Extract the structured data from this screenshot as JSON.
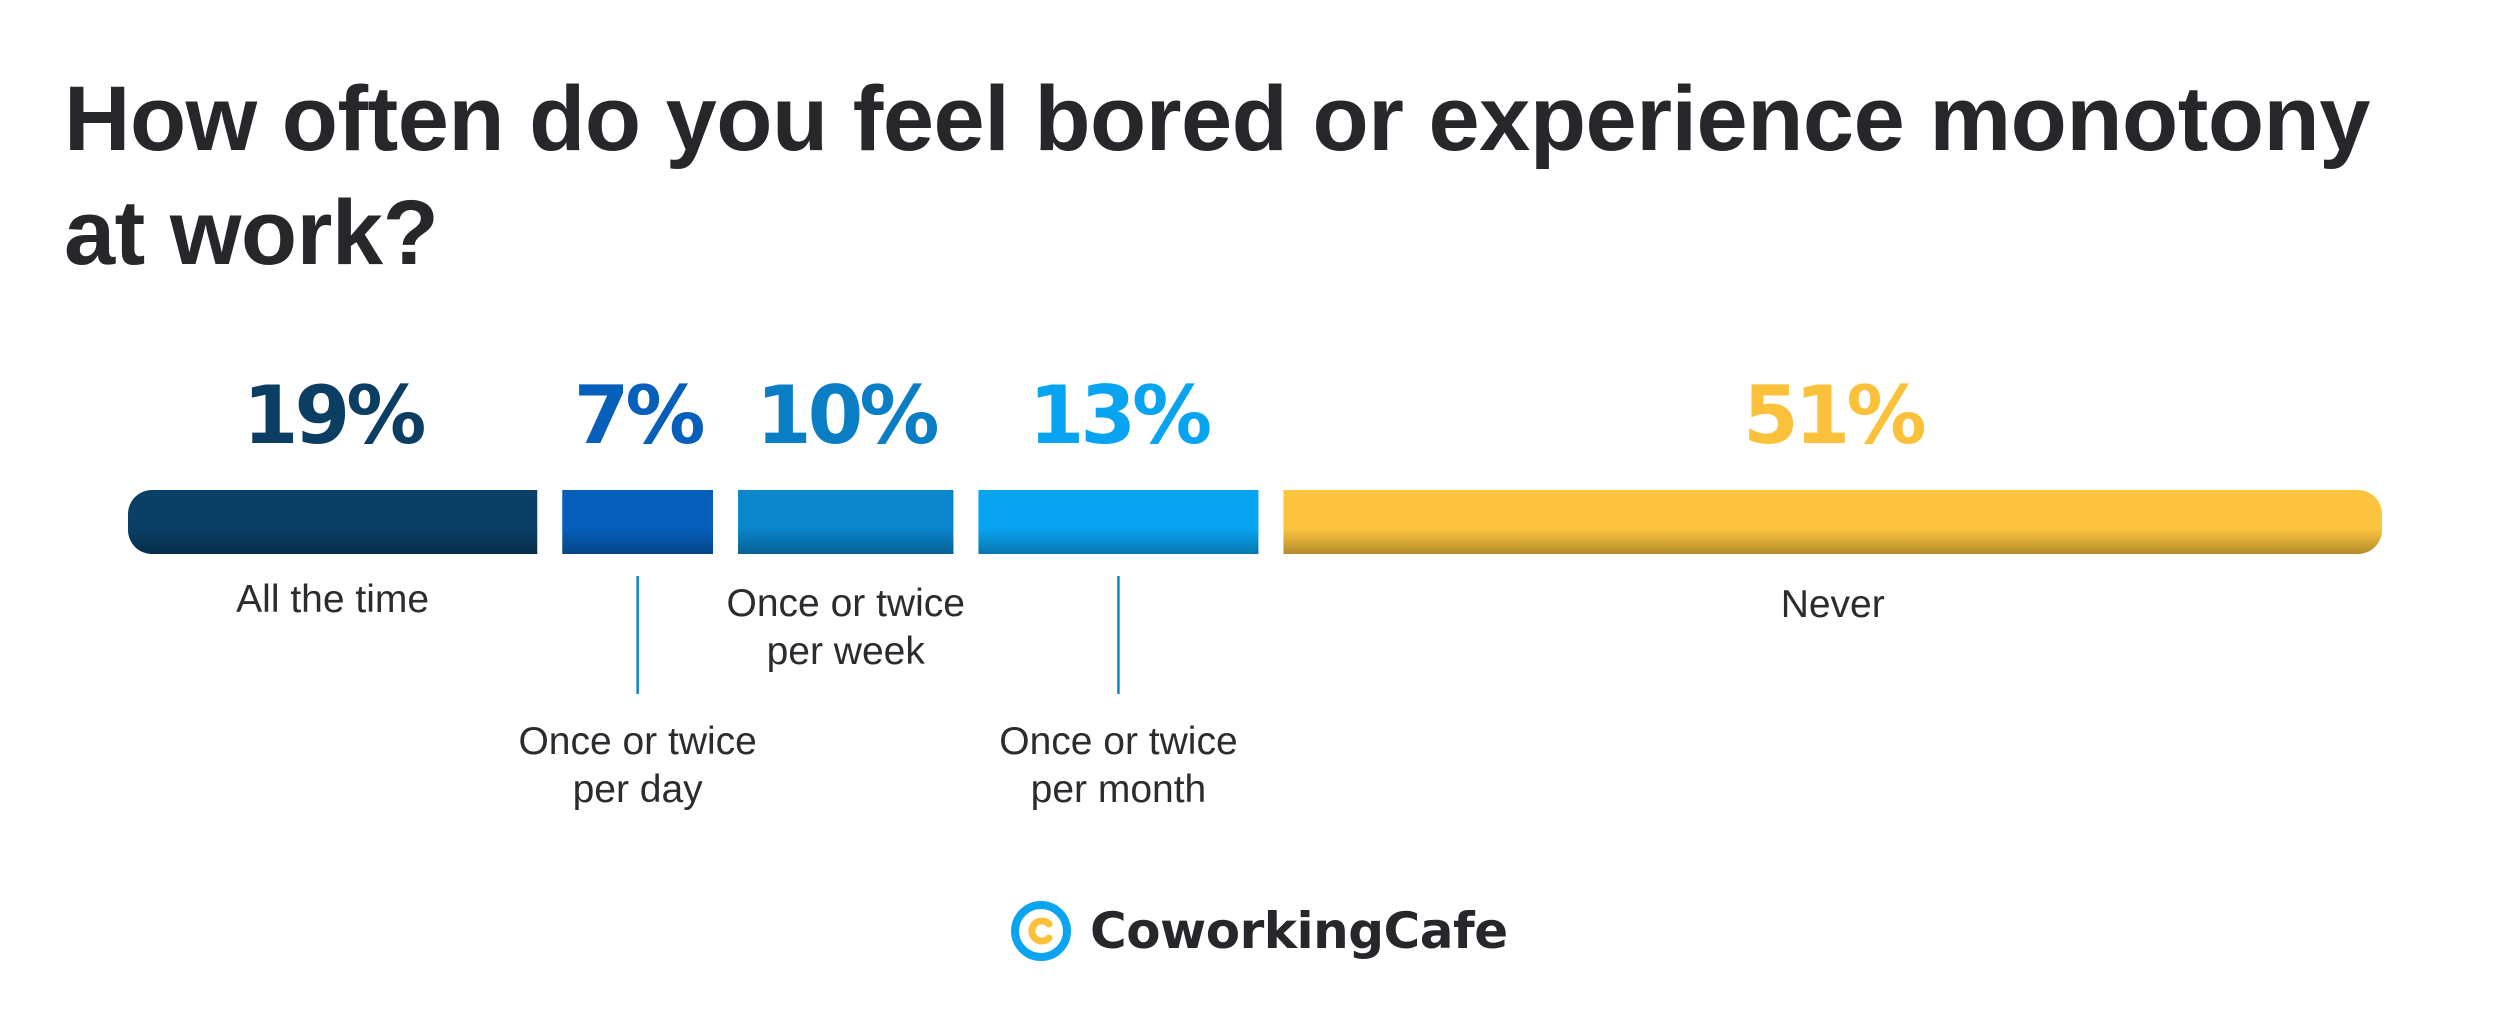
{
  "chart_data": {
    "type": "bar",
    "orientation": "horizontal-stacked",
    "title": "How often do you feel bored or experience monotony at work?",
    "unit": "%",
    "categories": [
      "All the time",
      "Once or twice per day",
      "Once or twice per week",
      "Once or twice per month",
      "Never"
    ],
    "values": [
      19,
      7,
      10,
      13,
      51
    ],
    "value_labels": [
      "19%",
      "7%",
      "10%",
      "13%",
      "51%"
    ],
    "category_labels": [
      [
        "All the time"
      ],
      [
        "Once or twice",
        "per day"
      ],
      [
        "Once or twice",
        "per week"
      ],
      [
        "Once or twice",
        "per month"
      ],
      [
        "Never"
      ]
    ],
    "label_placement": [
      "below",
      "below-leader",
      "below",
      "below-leader",
      "below"
    ],
    "colors": [
      "#0a3f66",
      "#0660bb",
      "#0a86cc",
      "#08a4f2",
      "#fcc43f"
    ],
    "label_colors": [
      "#0c3d63",
      "#0660bb",
      "#0a7ec4",
      "#08a4f2",
      "#fbc13a"
    ],
    "legend": "none",
    "grid": false
  },
  "brand": {
    "name": "CoworkingCafe",
    "logo_icon": "coworkingcafe-logo-icon"
  }
}
